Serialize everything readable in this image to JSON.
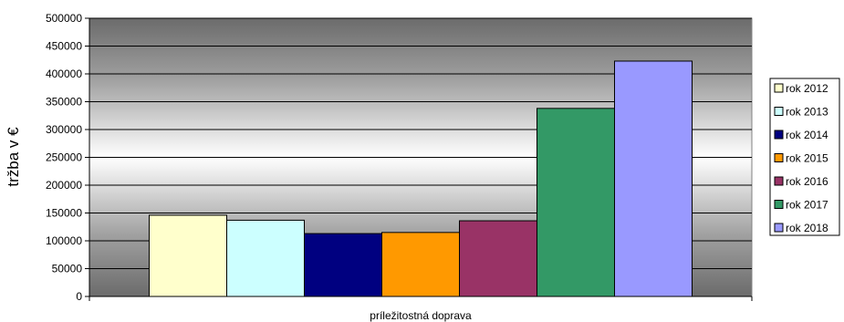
{
  "chart_data": {
    "type": "bar",
    "categories": [
      "príležitostná doprava"
    ],
    "series": [
      {
        "name": "rok 2012",
        "values": [
          146000
        ],
        "color": "#FFFFCC"
      },
      {
        "name": "rok 2013",
        "values": [
          137000
        ],
        "color": "#CCFFFF"
      },
      {
        "name": "rok 2014",
        "values": [
          113000
        ],
        "color": "#000080"
      },
      {
        "name": "rok 2015",
        "values": [
          115000
        ],
        "color": "#FF9900"
      },
      {
        "name": "rok 2016",
        "values": [
          136000
        ],
        "color": "#993366"
      },
      {
        "name": "rok 2017",
        "values": [
          338000
        ],
        "color": "#339966"
      },
      {
        "name": "rok 2018",
        "values": [
          423000
        ],
        "color": "#9999FF"
      }
    ],
    "ylabel": "tržba v €",
    "xlabel": "",
    "ylim": [
      0,
      500000
    ],
    "yticks": [
      "0",
      "50000",
      "100000",
      "150000",
      "200000",
      "250000",
      "300000",
      "350000",
      "400000",
      "450000",
      "500000"
    ],
    "grid": true,
    "legend_position": "right"
  }
}
